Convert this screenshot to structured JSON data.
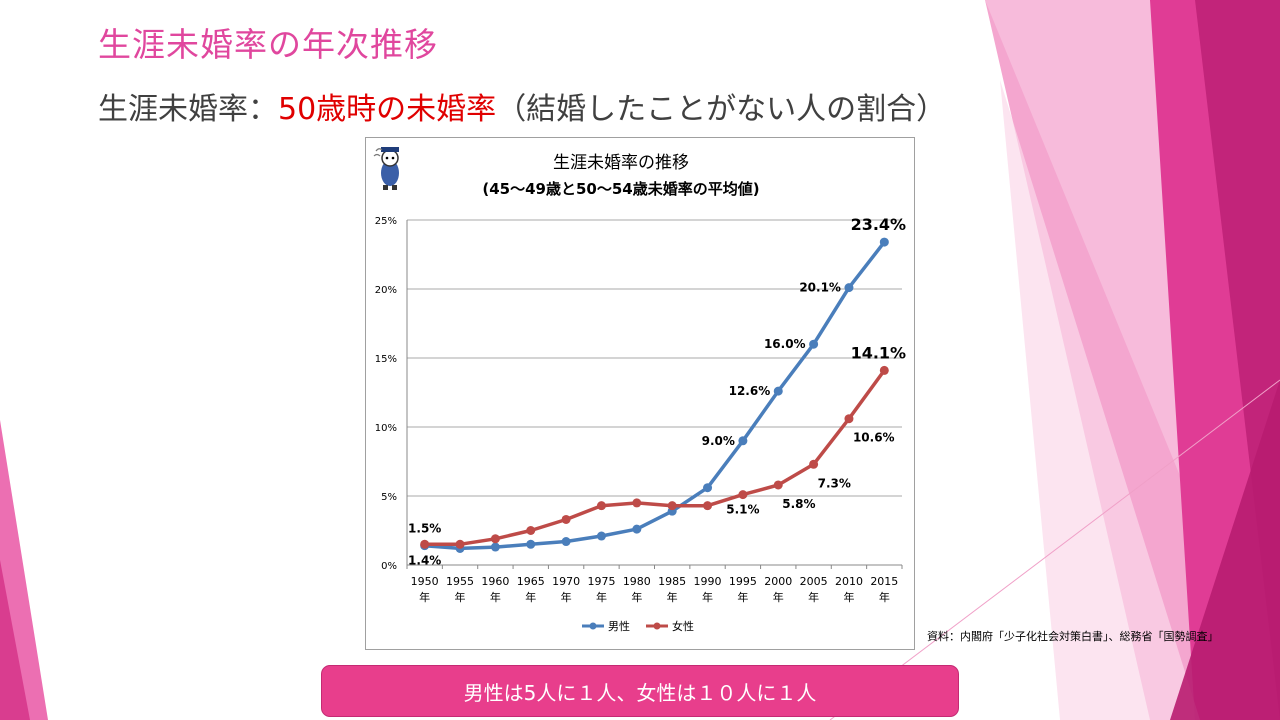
{
  "slide": {
    "title": "生涯未婚率の年次推移",
    "subtitle_prefix": "生涯未婚率：",
    "subtitle_highlight": "50歳時の未婚率",
    "subtitle_suffix": "（結婚したことがない人の割合）",
    "source": "資料：内閣府「少子化社会対策白書」、総務省「国勢調査」",
    "banner": "男性は5人に１人、女性は１０人に１人"
  },
  "colors": {
    "accent_pink": "#e0479e",
    "highlight_red": "#e00000",
    "banner_pink": "#e83e8c",
    "male": "#4a7ebb",
    "female": "#be4b48"
  },
  "chart_data": {
    "type": "line",
    "title_line1": "生涯未婚率の推移",
    "title_line2": "(45～49歳と50～54歳未婚率の平均値)",
    "categories": [
      "1950",
      "1955",
      "1960",
      "1965",
      "1970",
      "1975",
      "1980",
      "1985",
      "1990",
      "1995",
      "2000",
      "2005",
      "2010",
      "2015"
    ],
    "category_suffix": "年",
    "ylim": [
      0,
      25
    ],
    "yticks": [
      0,
      5,
      10,
      15,
      20,
      25
    ],
    "ytick_labels": [
      "0%",
      "5%",
      "10%",
      "15%",
      "20%",
      "25%"
    ],
    "grid": true,
    "legend_position": "bottom",
    "series": [
      {
        "name": "男性",
        "color": "#4a7ebb",
        "values": [
          1.4,
          1.2,
          1.3,
          1.5,
          1.7,
          2.1,
          2.6,
          3.9,
          5.6,
          9.0,
          12.6,
          16.0,
          20.1,
          23.4
        ]
      },
      {
        "name": "女性",
        "color": "#be4b48",
        "values": [
          1.5,
          1.5,
          1.9,
          2.5,
          3.3,
          4.3,
          4.5,
          4.3,
          4.3,
          5.1,
          5.8,
          7.3,
          10.6,
          14.1
        ]
      }
    ],
    "data_labels": [
      {
        "series": 0,
        "index": 0,
        "text": "1.4%",
        "anchor": "below"
      },
      {
        "series": 0,
        "index": 9,
        "text": "9.0%",
        "anchor": "left"
      },
      {
        "series": 0,
        "index": 10,
        "text": "12.6%",
        "anchor": "left"
      },
      {
        "series": 0,
        "index": 11,
        "text": "16.0%",
        "anchor": "left"
      },
      {
        "series": 0,
        "index": 12,
        "text": "20.1%",
        "anchor": "left"
      },
      {
        "series": 0,
        "index": 13,
        "text": "23.4%",
        "anchor": "above",
        "large": true
      },
      {
        "series": 1,
        "index": 0,
        "text": "1.5%",
        "anchor": "above"
      },
      {
        "series": 1,
        "index": 9,
        "text": "5.1%",
        "anchor": "below"
      },
      {
        "series": 1,
        "index": 10,
        "text": "5.8%",
        "anchor": "below-right"
      },
      {
        "series": 1,
        "index": 11,
        "text": "7.3%",
        "anchor": "below-right"
      },
      {
        "series": 1,
        "index": 12,
        "text": "10.6%",
        "anchor": "below-right"
      },
      {
        "series": 1,
        "index": 13,
        "text": "14.1%",
        "anchor": "above",
        "large": true
      }
    ]
  }
}
